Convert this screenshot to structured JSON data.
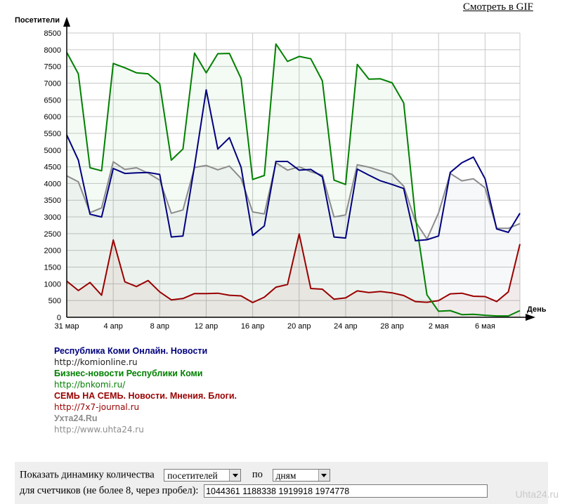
{
  "links": {
    "gif": "Смотреть в GIF"
  },
  "chart_data": {
    "type": "line",
    "ylabel": "Посетители",
    "xlabel": "День",
    "ylim": [
      0,
      8500
    ],
    "yticks": [
      0,
      500,
      1000,
      1500,
      2000,
      2500,
      3000,
      3500,
      4000,
      4500,
      5000,
      5500,
      6000,
      6500,
      7000,
      7500,
      8000,
      8500
    ],
    "x_tick_labels": [
      {
        "day": 0,
        "label": "31 мар"
      },
      {
        "day": 4,
        "label": "4 апр"
      },
      {
        "day": 8,
        "label": "8 апр"
      },
      {
        "day": 12,
        "label": "12 апр"
      },
      {
        "day": 16,
        "label": "16 апр"
      },
      {
        "day": 20,
        "label": "20 апр"
      },
      {
        "day": 24,
        "label": "24 апр"
      },
      {
        "day": 28,
        "label": "28 апр"
      },
      {
        "day": 32,
        "label": "2 мая"
      },
      {
        "day": 36,
        "label": "6 мая"
      }
    ],
    "x_range": [
      0,
      39
    ],
    "grid": true,
    "series": [
      {
        "name": "Республика Коми Онлайн. Новости",
        "color": "#00007f",
        "fill": false,
        "values": [
          5450,
          4700,
          3080,
          3000,
          4450,
          4300,
          4320,
          4330,
          4270,
          2400,
          2430,
          4530,
          6800,
          5030,
          5370,
          4490,
          2450,
          2730,
          4660,
          4660,
          4400,
          4420,
          4200,
          2400,
          2370,
          4430,
          4250,
          4080,
          3970,
          3850,
          2290,
          2320,
          2430,
          4330,
          4620,
          4790,
          4140,
          2640,
          2540,
          3110
        ]
      },
      {
        "name": "Бизнес-новости Республики Коми",
        "color": "#008000",
        "fill": true,
        "values": [
          7920,
          7280,
          4470,
          4380,
          7590,
          7460,
          7310,
          7280,
          6980,
          4700,
          5030,
          7900,
          7310,
          7880,
          7890,
          7140,
          4120,
          4240,
          8170,
          7650,
          7800,
          7730,
          7070,
          4100,
          3970,
          7560,
          7120,
          7130,
          7010,
          6410,
          3000,
          670,
          180,
          200,
          80,
          90,
          60,
          40,
          40,
          200
        ]
      },
      {
        "name": "СЕМЬ НА СЕМЬ. Новости. Мнения. Блоги.",
        "color": "#990000",
        "fill": true,
        "values": [
          1080,
          800,
          1040,
          660,
          2310,
          1060,
          920,
          1100,
          760,
          520,
          560,
          710,
          710,
          720,
          660,
          640,
          440,
          600,
          900,
          980,
          2490,
          860,
          840,
          540,
          580,
          790,
          740,
          770,
          730,
          650,
          470,
          450,
          500,
          700,
          720,
          630,
          620,
          470,
          760,
          2190
        ]
      },
      {
        "name": "Ухта24.Ru",
        "color": "#8c8c8c",
        "fill": true,
        "values": [
          4230,
          4050,
          3130,
          3270,
          4650,
          4420,
          4470,
          4310,
          4100,
          3110,
          3210,
          4480,
          4540,
          4410,
          4520,
          4150,
          3150,
          3090,
          4620,
          4400,
          4500,
          4350,
          4250,
          3000,
          3060,
          4560,
          4490,
          4380,
          4270,
          3920,
          2870,
          2340,
          3120,
          4300,
          4080,
          4140,
          3870,
          2660,
          2660,
          2800
        ]
      }
    ]
  },
  "legend": [
    {
      "name": "Республика Коми Онлайн. Новости",
      "url": "http://komionline.ru",
      "color": "#00007f"
    },
    {
      "name": "Бизнес-новости Республики Коми",
      "url": "http://bnkomi.ru/",
      "color": "#008000"
    },
    {
      "name": "СЕМЬ НА СЕМЬ. Новости. Мнения. Блоги.",
      "url": "http://7x7-journal.ru",
      "color": "#990000"
    },
    {
      "name": "Ухта24.Ru",
      "url": "http://www.uhta24.ru",
      "color": "#8c8c8c"
    }
  ],
  "controls": {
    "show_label": "Показать динамику количества",
    "metric_value": "посетителей",
    "by_label": "по",
    "period_value": "дням",
    "counters_label": "для счетчиков (не более 8, через пробел):",
    "counters_value": "1044361 1188338 1919918 1974778"
  },
  "watermark": "Uhta24.ru"
}
